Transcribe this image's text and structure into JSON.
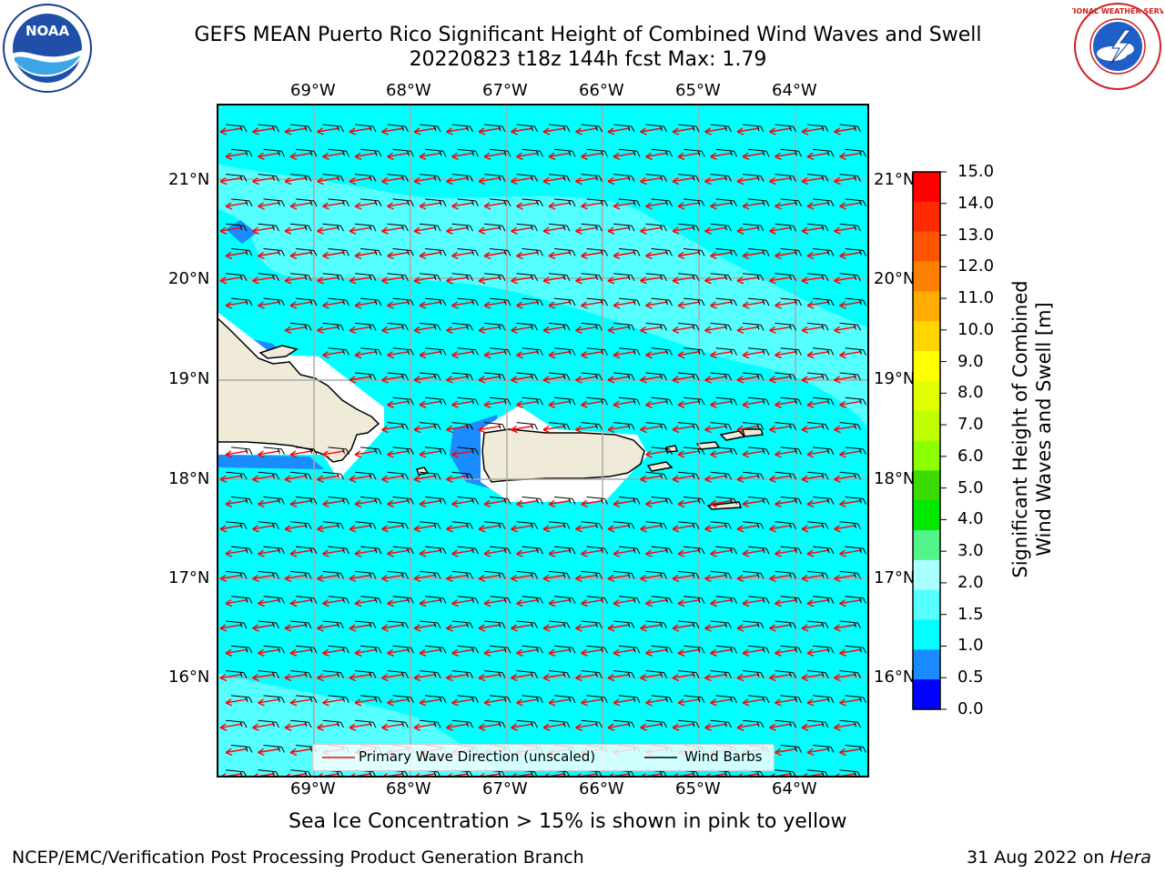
{
  "title": {
    "line1": "GEFS MEAN Puerto Rico Significant Height of Combined Wind Waves and Swell",
    "line2": "20220823 t18z 144h fcst   Max: 1.79"
  },
  "logos": {
    "left": {
      "text": "NOAA",
      "icon": "noaa-logo"
    },
    "right": {
      "text": "NATIONAL WEATHER SERVICE",
      "icon": "nws-logo"
    }
  },
  "map": {
    "lon_labels": [
      "69°W",
      "68°W",
      "67°W",
      "66°W",
      "65°W",
      "64°W"
    ],
    "lat_labels": [
      "21°N",
      "20°N",
      "19°N",
      "18°N",
      "17°N",
      "16°N"
    ],
    "lon_range": [
      -70,
      -63.25
    ],
    "lat_range": [
      15.05,
      21.75
    ],
    "colors": {
      "sea_main": "#00ffff",
      "sea_light": "#55ffff",
      "sea_dark": "#1a8cff",
      "land": "#efebd8",
      "ice_free": "#ffffff",
      "wave_arrow": "#ff0000",
      "wind_barb": "#000000",
      "grid": "#aaaaaa"
    }
  },
  "legend": {
    "wave_label": "Primary Wave Direction (unscaled)",
    "barb_label": "Wind Barbs"
  },
  "colorbar": {
    "label_line1": "Significant Height of Combined",
    "label_line2": "Wind Waves and Swell [m]",
    "ticks": [
      "15.0",
      "14.0",
      "13.0",
      "12.0",
      "11.0",
      "10.0",
      "9.0",
      "8.0",
      "7.0",
      "6.0",
      "5.0",
      "4.0",
      "3.0",
      "2.0",
      "1.5",
      "1.0",
      "0.5",
      "0.0"
    ],
    "colors": [
      "#ff0000",
      "#ff2a00",
      "#ff5500",
      "#ff8000",
      "#ffab00",
      "#ffd500",
      "#ffff00",
      "#e0ff00",
      "#c0ff00",
      "#8cff00",
      "#3ddc00",
      "#00e800",
      "#52f58a",
      "#aaffff",
      "#55ffff",
      "#00ffff",
      "#1a8cff",
      "#0000ff"
    ]
  },
  "sea_ice_note": "Sea Ice Concentration > 15% is shown in pink to yellow",
  "footer": {
    "left": "NCEP/EMC/Verification Post Processing Product Generation Branch",
    "right_prefix": "31 Aug 2022 on ",
    "right_italic": "Hera"
  }
}
